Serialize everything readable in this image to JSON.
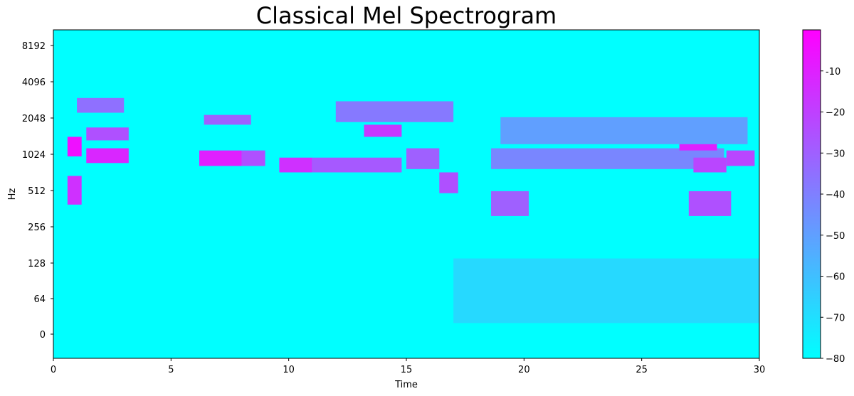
{
  "chart_data": {
    "type": "heatmap",
    "title": "Classical Mel Spectrogram",
    "xlabel": "Time",
    "ylabel": "Hz",
    "xlim": [
      0,
      30
    ],
    "x_ticks": [
      0,
      5,
      10,
      15,
      20,
      25,
      30
    ],
    "y_scale": "symlog",
    "y_ticks": [
      "0",
      "64",
      "128",
      "256",
      "512",
      "1024",
      "2048",
      "4096",
      "8192"
    ],
    "colormap": "cool",
    "colormap_colors": [
      "#00ffff",
      "#ff00ff"
    ],
    "background_color": "#00ffff",
    "colorbar": {
      "range": [
        -80,
        0
      ],
      "ticks": [
        "-10",
        "−20",
        "−30",
        "−40",
        "−50",
        "−60",
        "−70",
        "−80"
      ],
      "tick_values": [
        -10,
        -20,
        -30,
        -40,
        -50,
        -60,
        -70,
        -80
      ]
    },
    "notable_regions": [
      {
        "t": [
          0.6,
          1.2
        ],
        "hz": [
          1024,
          1500
        ],
        "db": -5
      },
      {
        "t": [
          0.6,
          1.2
        ],
        "hz": [
          400,
          700
        ],
        "db": -15
      },
      {
        "t": [
          1.4,
          3.2
        ],
        "hz": [
          900,
          1200
        ],
        "db": -12
      },
      {
        "t": [
          1.4,
          3.2
        ],
        "hz": [
          1400,
          1800
        ],
        "db": -25
      },
      {
        "t": [
          6.2,
          8.0
        ],
        "hz": [
          850,
          1150
        ],
        "db": -10
      },
      {
        "t": [
          8.0,
          9.0
        ],
        "hz": [
          850,
          1150
        ],
        "db": -25
      },
      {
        "t": [
          9.6,
          11.0
        ],
        "hz": [
          750,
          1000
        ],
        "db": -15
      },
      {
        "t": [
          11.0,
          14.8
        ],
        "hz": [
          750,
          1000
        ],
        "db": -28
      },
      {
        "t": [
          13.2,
          14.8
        ],
        "hz": [
          1500,
          1900
        ],
        "db": -18
      },
      {
        "t": [
          15.0,
          16.4
        ],
        "hz": [
          800,
          1200
        ],
        "db": -30
      },
      {
        "t": [
          16.4,
          17.2
        ],
        "hz": [
          500,
          750
        ],
        "db": -25
      },
      {
        "t": [
          18.6,
          20.2
        ],
        "hz": [
          320,
          520
        ],
        "db": -30
      },
      {
        "t": [
          18.6,
          28.5
        ],
        "hz": [
          800,
          1200
        ],
        "db": -42
      },
      {
        "t": [
          26.6,
          28.2
        ],
        "hz": [
          1150,
          1400
        ],
        "db": -10
      },
      {
        "t": [
          27.0,
          28.8
        ],
        "hz": [
          320,
          520
        ],
        "db": -25
      },
      {
        "t": [
          27.2,
          28.6
        ],
        "hz": [
          750,
          1000
        ],
        "db": -22
      },
      {
        "t": [
          28.6,
          29.8
        ],
        "hz": [
          850,
          1150
        ],
        "db": -22
      },
      {
        "t": [
          1.0,
          3.0
        ],
        "hz": [
          2400,
          3200
        ],
        "db": -35
      },
      {
        "t": [
          6.4,
          8.4
        ],
        "hz": [
          1900,
          2300
        ],
        "db": -30
      },
      {
        "t": [
          12.0,
          17.0
        ],
        "hz": [
          2000,
          3000
        ],
        "db": -38
      },
      {
        "t": [
          19.0,
          29.5
        ],
        "hz": [
          1300,
          2200
        ],
        "db": -50
      },
      {
        "t": [
          17.0,
          30.0
        ],
        "hz": [
          20,
          140
        ],
        "db": -68
      }
    ]
  }
}
